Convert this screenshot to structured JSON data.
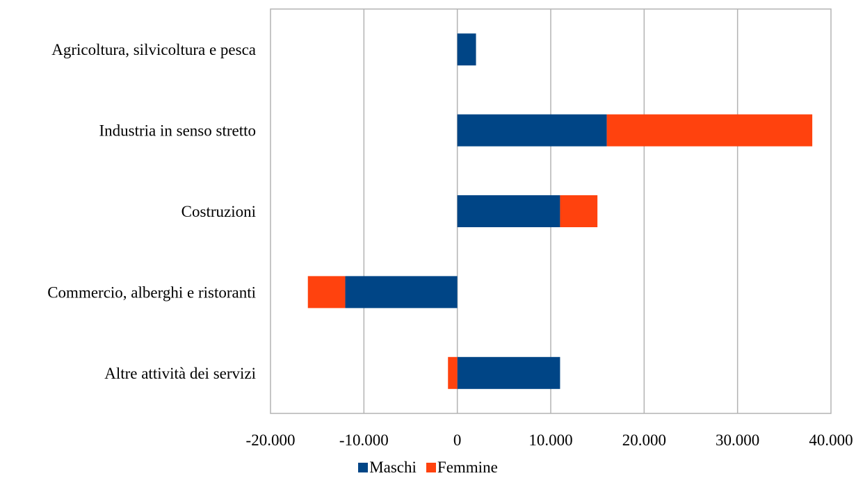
{
  "chart_data": {
    "type": "bar",
    "orientation": "horizontal",
    "stacked": true,
    "categories": [
      "Agricoltura, silvicoltura e pesca",
      "Industria in senso stretto",
      "Costruzioni",
      "Commercio,  alberghi e ristoranti",
      "Altre attività dei servizi"
    ],
    "series": [
      {
        "name": "Maschi",
        "color": "#004586",
        "values": [
          2000,
          16000,
          11000,
          -12000,
          11000
        ]
      },
      {
        "name": "Femmine",
        "color": "#FF420E",
        "values": [
          0,
          22000,
          4000,
          -4000,
          -1000
        ]
      }
    ],
    "xlim": [
      -20000,
      40000
    ],
    "x_ticks": [
      -20000,
      -10000,
      0,
      10000,
      20000,
      30000,
      40000
    ],
    "x_tick_labels": [
      "-20.000",
      "-10.000",
      "0",
      "10.000",
      "20.000",
      "30.000",
      "40.000"
    ],
    "grid": "vertical",
    "legend_position": "bottom"
  }
}
